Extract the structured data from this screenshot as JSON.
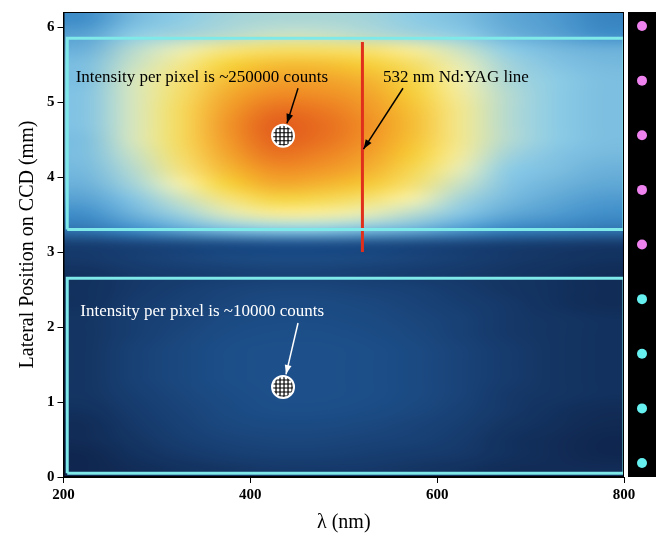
{
  "chart_data": {
    "type": "heatmap",
    "xlabel": "λ (nm)",
    "ylabel": "Lateral Position on CCD (mm)",
    "xlim": [
      200,
      800
    ],
    "ylim": [
      0,
      6.2
    ],
    "xticks": [
      200,
      400,
      600,
      800
    ],
    "yticks": [
      0,
      1,
      2,
      3,
      4,
      5,
      6
    ],
    "grid": false,
    "heatmap": {
      "zlim": [
        2000,
        300000
      ],
      "x": [
        225,
        275,
        325,
        375,
        425,
        475,
        525,
        575,
        625,
        675,
        725,
        775
      ],
      "y": [
        0.1,
        0.3,
        0.5,
        0.7,
        0.9,
        1.1,
        1.3,
        1.5,
        1.7,
        1.9,
        2.1,
        2.3,
        2.5,
        2.7,
        2.9,
        3.1,
        3.3,
        3.5,
        3.7,
        3.9,
        4.1,
        4.3,
        4.5,
        4.7,
        4.9,
        5.1,
        5.3,
        5.5,
        5.7,
        5.9,
        6.1
      ],
      "z": [
        [
          3000,
          3500,
          4000,
          4500,
          5000,
          5000,
          5000,
          4500,
          4000,
          3500,
          3500,
          3500
        ],
        [
          3000,
          4000,
          5000,
          6000,
          6500,
          6500,
          6000,
          5500,
          5000,
          4000,
          3500,
          3000
        ],
        [
          3500,
          4500,
          6000,
          7000,
          7500,
          7500,
          7000,
          6500,
          5500,
          4000,
          3500,
          3000
        ],
        [
          3500,
          5000,
          6500,
          8000,
          8500,
          8500,
          8000,
          7000,
          6000,
          4500,
          3800,
          3200
        ],
        [
          4000,
          5500,
          7000,
          8500,
          9500,
          9500,
          9000,
          8000,
          6500,
          5000,
          4000,
          3500
        ],
        [
          4500,
          6000,
          7500,
          9000,
          10000,
          10000,
          9500,
          8500,
          7000,
          5000,
          4500,
          4000
        ],
        [
          4500,
          6500,
          8000,
          9500,
          10000,
          10000,
          9500,
          8500,
          7000,
          5500,
          4500,
          4000
        ],
        [
          4500,
          6500,
          8000,
          9500,
          10000,
          10000,
          9500,
          8500,
          7000,
          5500,
          4500,
          4000
        ],
        [
          4500,
          6500,
          8000,
          9500,
          10000,
          10000,
          9500,
          8500,
          7000,
          5500,
          4500,
          4000
        ],
        [
          4500,
          6000,
          7500,
          9000,
          9500,
          9500,
          9000,
          8000,
          6500,
          5000,
          4500,
          4000
        ],
        [
          4500,
          6000,
          7000,
          8500,
          9000,
          9000,
          8500,
          7500,
          6500,
          5000,
          4500,
          4000
        ],
        [
          4000,
          5500,
          6500,
          7500,
          8500,
          8500,
          8000,
          7000,
          6000,
          5000,
          4000,
          3500
        ],
        [
          4000,
          5000,
          6000,
          7000,
          7500,
          7500,
          7000,
          6500,
          5500,
          4500,
          4000,
          3500
        ],
        [
          4000,
          5000,
          5500,
          6000,
          6500,
          6500,
          6000,
          5500,
          5000,
          4500,
          4000,
          3500
        ],
        [
          5000,
          6000,
          7000,
          8000,
          8500,
          8500,
          8000,
          7000,
          6000,
          5000,
          4500,
          4000
        ],
        [
          6000,
          7000,
          8000,
          9000,
          10000,
          10000,
          9000,
          8000,
          7000,
          6000,
          5500,
          5000
        ],
        [
          18000,
          25000,
          32000,
          40000,
          45000,
          45000,
          40000,
          35000,
          28000,
          22000,
          20000,
          18000
        ],
        [
          25000,
          35000,
          48000,
          65000,
          80000,
          78000,
          68000,
          55000,
          42000,
          32000,
          28000,
          25000
        ],
        [
          30000,
          42000,
          60000,
          90000,
          115000,
          110000,
          95000,
          75000,
          50000,
          38000,
          32000,
          28000
        ],
        [
          35000,
          50000,
          75000,
          120000,
          160000,
          150000,
          130000,
          95000,
          60000,
          42000,
          36000,
          32000
        ],
        [
          38000,
          55000,
          90000,
          145000,
          195000,
          185000,
          155000,
          110000,
          70000,
          45000,
          40000,
          35000
        ],
        [
          40000,
          60000,
          100000,
          165000,
          225000,
          210000,
          175000,
          125000,
          80000,
          50000,
          42000,
          38000
        ],
        [
          40000,
          65000,
          105000,
          180000,
          245000,
          230000,
          190000,
          135000,
          85000,
          55000,
          45000,
          40000
        ],
        [
          42000,
          65000,
          105000,
          185000,
          250000,
          235000,
          195000,
          140000,
          85000,
          55000,
          45000,
          40000
        ],
        [
          42000,
          65000,
          105000,
          175000,
          230000,
          220000,
          185000,
          135000,
          85000,
          55000,
          45000,
          40000
        ],
        [
          42000,
          65000,
          100000,
          160000,
          200000,
          195000,
          170000,
          125000,
          80000,
          55000,
          45000,
          40000
        ],
        [
          40000,
          65000,
          95000,
          140000,
          170000,
          170000,
          150000,
          115000,
          75000,
          52000,
          45000,
          40000
        ],
        [
          40000,
          60000,
          85000,
          120000,
          140000,
          140000,
          125000,
          100000,
          70000,
          50000,
          42000,
          38000
        ],
        [
          35000,
          55000,
          70000,
          90000,
          100000,
          100000,
          95000,
          80000,
          60000,
          45000,
          38000,
          35000
        ],
        [
          30000,
          45000,
          50000,
          55000,
          60000,
          60000,
          55000,
          50000,
          45000,
          35000,
          30000,
          25000
        ],
        [
          25000,
          38000,
          45000,
          50000,
          52000,
          52000,
          50000,
          45000,
          40000,
          32000,
          28000,
          22000
        ]
      ]
    },
    "regions": [
      {
        "x": [
          204,
          800
        ],
        "y": [
          3.3,
          5.85
        ],
        "color": "#7fe8e8"
      },
      {
        "x": [
          204,
          800
        ],
        "y": [
          0.05,
          2.65
        ],
        "color": "#7fe8e8"
      }
    ],
    "laser_line": {
      "x": 520,
      "y": [
        3.0,
        5.8
      ],
      "color": "#e0301c"
    },
    "markers": [
      {
        "x": 435,
        "y": 4.55
      },
      {
        "x": 435,
        "y": 1.2
      }
    ],
    "annotations": [
      {
        "text": "Intensity per pixel is ~250000 counts",
        "x": 435,
        "y": 4.55,
        "text_x": 213,
        "text_y": 5.33,
        "color": "#000000"
      },
      {
        "text": "532 nm Nd:YAG line",
        "x": 520,
        "y": 4.35,
        "text_x": 542,
        "text_y": 5.33,
        "color": "#000000"
      },
      {
        "text": "Intensity per pixel is ~10000 counts",
        "x": 435,
        "y": 1.2,
        "text_x": 218,
        "text_y": 2.2,
        "color": "#ffffff"
      }
    ]
  }
}
